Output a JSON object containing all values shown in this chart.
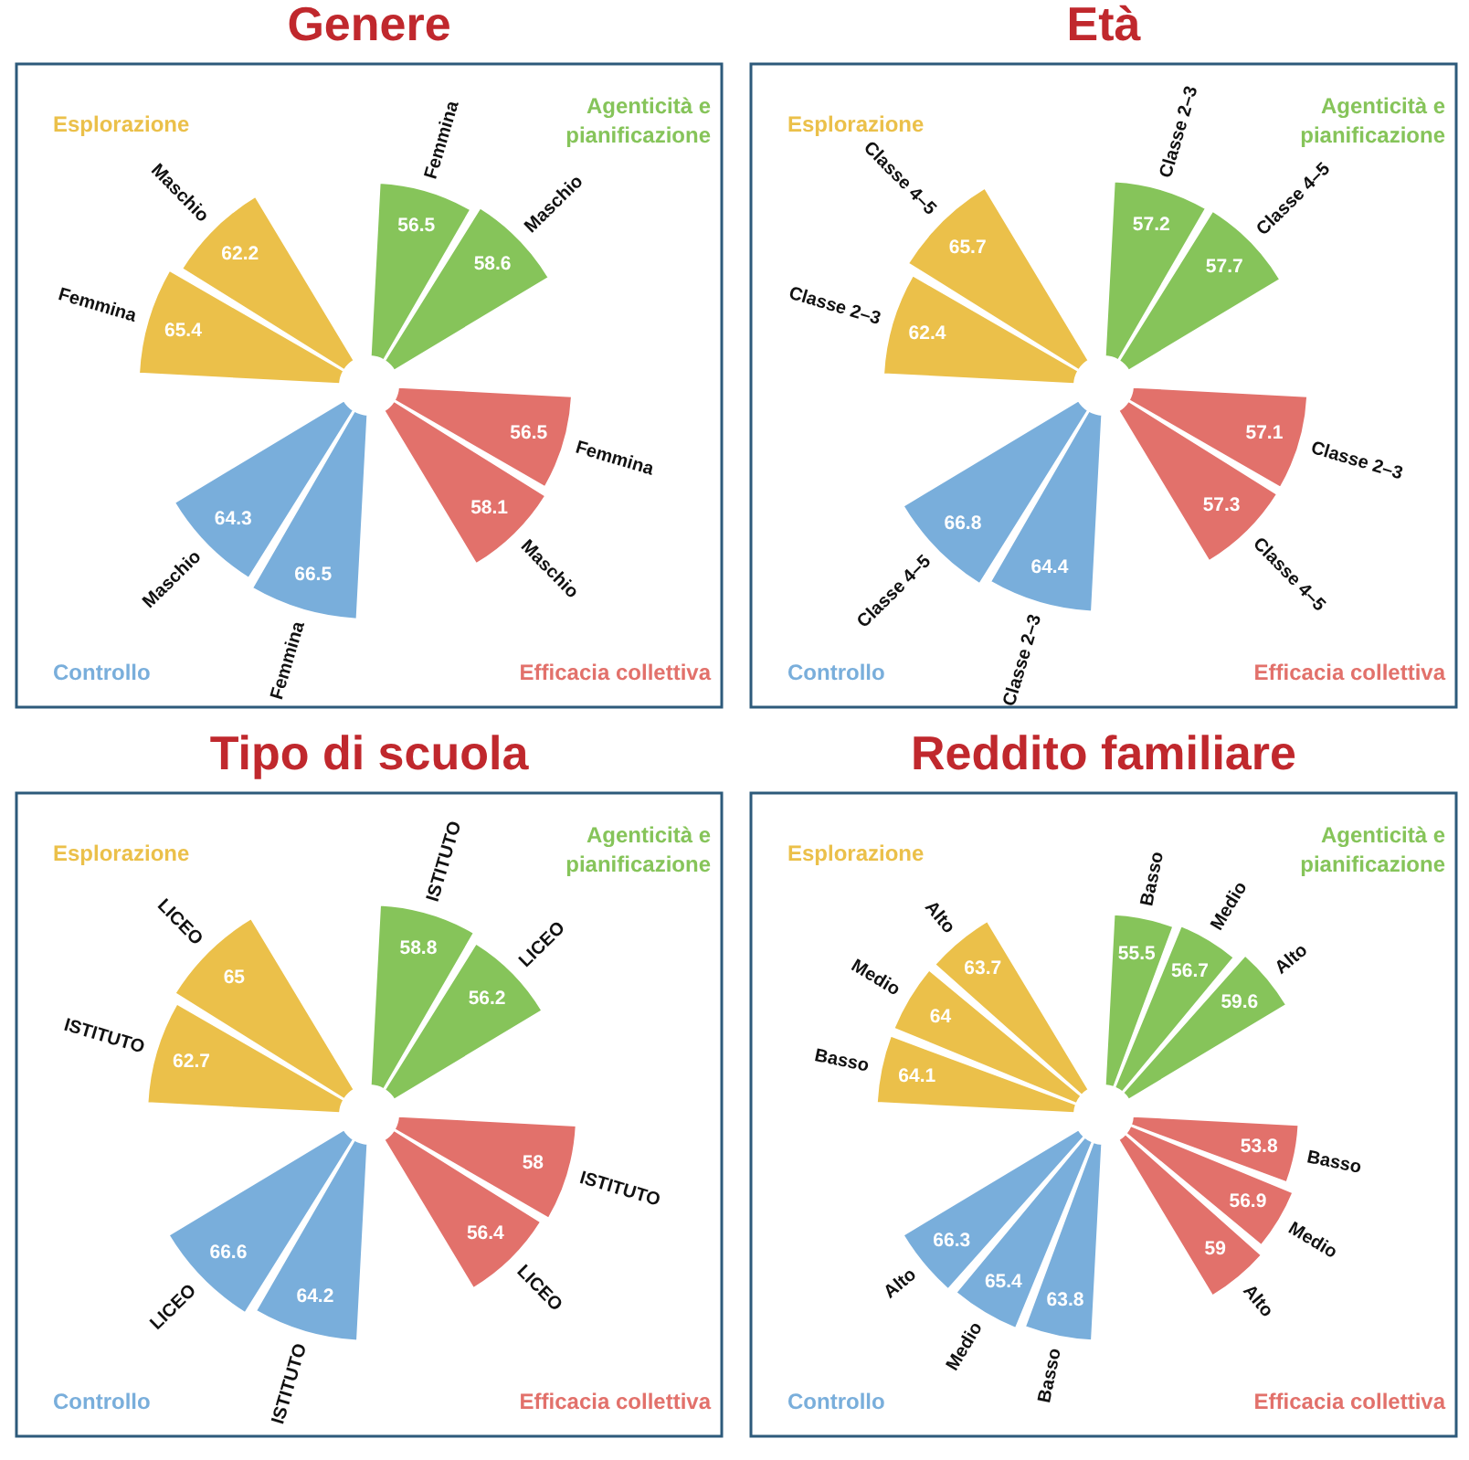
{
  "chart_data": [
    {
      "type": "other",
      "title": "Genere",
      "categories": [
        "Agenticità e pianificazione",
        "Efficacia collettiva",
        "Controllo",
        "Esplorazione"
      ],
      "colors": [
        "#86c45a",
        "#e2716b",
        "#79aedb",
        "#ebc04a"
      ],
      "data_labels": true,
      "series": [
        {
          "name": "Femmina",
          "colors": [
            "#86c45a",
            "#e2716b",
            "#79aedb",
            "#ebc04a"
          ],
          "values": [
            56.5,
            56.5,
            66.5,
            65.4
          ]
        },
        {
          "name": "Maschio",
          "colors": [
            "#86c45a",
            "#e2716b",
            "#79aedb",
            "#ebc04a"
          ],
          "values": [
            58.6,
            58.1,
            64.3,
            62.2
          ]
        }
      ]
    },
    {
      "type": "other",
      "title": "Età",
      "categories": [
        "Agenticità e pianificazione",
        "Efficacia collettiva",
        "Controllo",
        "Esplorazione"
      ],
      "colors": [
        "#86c45a",
        "#e2716b",
        "#79aedb",
        "#ebc04a"
      ],
      "data_labels": true,
      "series": [
        {
          "name": "Classe 2–3",
          "colors": [
            "#86c45a",
            "#e2716b",
            "#79aedb",
            "#ebc04a"
          ],
          "values": [
            57.2,
            57.1,
            64.4,
            62.4
          ]
        },
        {
          "name": "Classe 4–5",
          "colors": [
            "#86c45a",
            "#e2716b",
            "#79aedb",
            "#ebc04a"
          ],
          "values": [
            57.7,
            57.3,
            66.8,
            65.7
          ]
        }
      ]
    },
    {
      "type": "other",
      "title": "Tipo di scuola",
      "categories": [
        "Agenticità e pianificazione",
        "Efficacia collettiva",
        "Controllo",
        "Esplorazione"
      ],
      "colors": [
        "#86c45a",
        "#e2716b",
        "#79aedb",
        "#ebc04a"
      ],
      "data_labels": true,
      "series": [
        {
          "name": "ISTITUTO",
          "colors": [
            "#86c45a",
            "#e2716b",
            "#79aedb",
            "#ebc04a"
          ],
          "values": [
            58.8,
            58,
            64.2,
            62.7
          ]
        },
        {
          "name": "LICEO",
          "colors": [
            "#86c45a",
            "#e2716b",
            "#79aedb",
            "#ebc04a"
          ],
          "values": [
            56.2,
            56.4,
            66.6,
            65
          ]
        }
      ]
    },
    {
      "type": "other",
      "title": "Reddito familiare",
      "categories": [
        "Agenticità e pianificazione",
        "Efficacia collettiva",
        "Controllo",
        "Esplorazione"
      ],
      "colors": [
        "#86c45a",
        "#e2716b",
        "#79aedb",
        "#ebc04a"
      ],
      "data_labels": true,
      "series": [
        {
          "name": "Basso",
          "colors": [
            "#86c45a",
            "#e2716b",
            "#79aedb",
            "#ebc04a"
          ],
          "values": [
            55.5,
            53.8,
            63.8,
            64.1
          ]
        },
        {
          "name": "Medio",
          "colors": [
            "#86c45a",
            "#e2716b",
            "#79aedb",
            "#ebc04a"
          ],
          "values": [
            56.7,
            56.9,
            65.4,
            64
          ]
        },
        {
          "name": "Alto",
          "colors": [
            "#86c45a",
            "#e2716b",
            "#79aedb",
            "#ebc04a"
          ],
          "values": [
            59.6,
            59,
            66.3,
            63.7
          ]
        }
      ]
    }
  ]
}
